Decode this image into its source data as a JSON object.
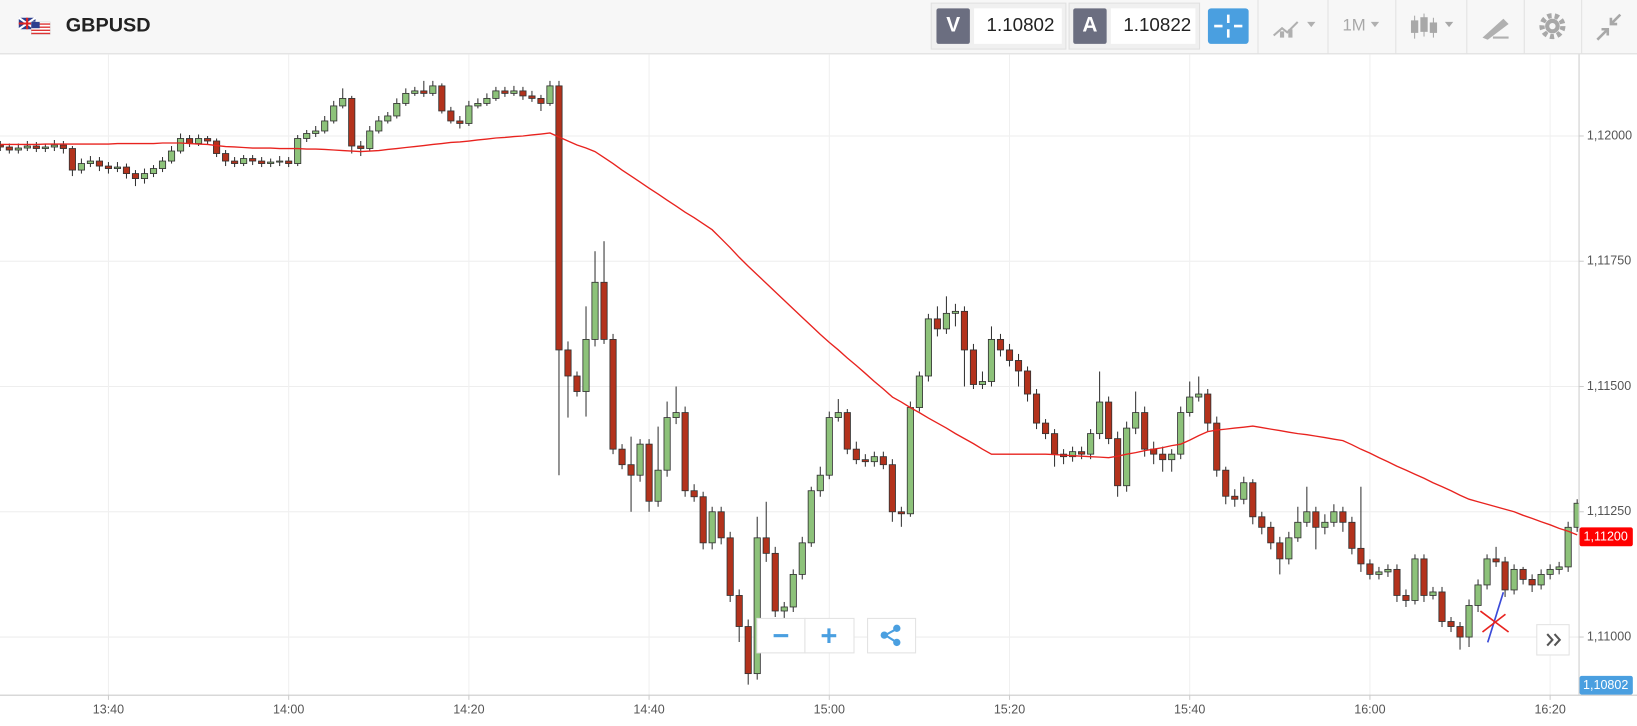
{
  "header": {
    "symbol": "GBPUSD",
    "sell_label": "V",
    "sell_price": "1.10802",
    "buy_label": "A",
    "buy_price": "1.10822",
    "timeframe": "1M"
  },
  "chart_data": {
    "type": "candlestick",
    "categories": [
      null,
      null,
      null,
      null,
      null,
      null,
      null,
      null,
      null,
      null,
      null,
      null,
      "13:40",
      null,
      null,
      null,
      null,
      null,
      null,
      null,
      null,
      null,
      null,
      null,
      null,
      null,
      null,
      null,
      null,
      null,
      null,
      null,
      "14:00",
      null,
      null,
      null,
      null,
      null,
      null,
      null,
      null,
      null,
      null,
      null,
      null,
      null,
      null,
      null,
      null,
      null,
      null,
      null,
      "14:20",
      null,
      null,
      null,
      null,
      null,
      null,
      null,
      null,
      null,
      null,
      null,
      null,
      null,
      null,
      null,
      null,
      null,
      null,
      null,
      "14:40",
      null,
      null,
      null,
      null,
      null,
      null,
      null,
      null,
      null,
      null,
      null,
      null,
      null,
      null,
      null,
      null,
      null,
      null,
      null,
      "15:00",
      null,
      null,
      null,
      null,
      null,
      null,
      null,
      null,
      null,
      null,
      null,
      null,
      null,
      null,
      null,
      null,
      null,
      null,
      null,
      "15:20",
      null,
      null,
      null,
      null,
      null,
      null,
      null,
      null,
      null,
      null,
      null,
      null,
      null,
      null,
      null,
      null,
      null,
      null,
      null,
      "15:40",
      null,
      null,
      null,
      null,
      null,
      null,
      null,
      null,
      null,
      null,
      null,
      null,
      null,
      null,
      null,
      null,
      null,
      null,
      null,
      "16:00",
      null,
      null,
      null,
      null,
      null,
      null,
      null,
      null,
      null,
      null,
      null,
      null,
      null,
      null,
      null,
      null,
      null,
      null,
      null,
      "16:20",
      null,
      null,
      null
    ],
    "open": [
      1.11982,
      1.11978,
      1.11972,
      1.11976,
      1.1198,
      1.11975,
      1.11978,
      1.11982,
      1.11975,
      1.11932,
      1.11945,
      1.1195,
      1.1194,
      1.11935,
      1.11938,
      1.11925,
      1.11915,
      1.11925,
      1.11935,
      1.1195,
      1.1197,
      1.11995,
      1.11985,
      1.11995,
      1.1199,
      1.11965,
      1.1195,
      1.11945,
      1.11955,
      1.1195,
      1.11945,
      1.11948,
      1.1195,
      1.11945,
      1.11995,
      1.12005,
      1.1201,
      1.1203,
      1.1206,
      1.12075,
      1.1198,
      1.11975,
      1.1201,
      1.1203,
      1.1204,
      1.12065,
      1.12085,
      1.1209,
      1.12085,
      1.121,
      1.1205,
      1.1203,
      1.12025,
      1.1206,
      1.12065,
      1.12075,
      1.1209,
      1.12085,
      1.1209,
      1.1208,
      1.12075,
      1.12065,
      1.121,
      1.11573,
      1.11521,
      1.1149,
      1.11594,
      1.11708,
      1.11594,
      1.11375,
      1.11344,
      1.11323,
      1.11385,
      1.11271,
      1.11333,
      1.11438,
      1.11448,
      1.11292,
      1.1128,
      1.11188,
      1.1125,
      1.11198,
      1.11083,
      1.11021,
      1.10927,
      1.11198,
      1.11167,
      1.11052,
      1.1106,
      1.11125,
      1.11188,
      1.11292,
      1.11323,
      1.11438,
      1.11448,
      1.11375,
      1.11354,
      1.1135,
      1.1136,
      1.11344,
      1.1125,
      1.11246,
      1.11458,
      1.11521,
      1.11635,
      1.11615,
      1.11646,
      1.1165,
      1.11573,
      1.11504,
      1.1151,
      1.11594,
      1.11573,
      1.11552,
      1.11531,
      1.11485,
      1.11427,
      1.11406,
      1.11365,
      1.1136,
      1.1137,
      1.11365,
      1.11406,
      1.11469,
      1.11396,
      1.11302,
      1.11417,
      1.11448,
      1.11375,
      1.11365,
      1.11354,
      1.11365,
      1.11448,
      1.11479,
      1.11485,
      1.11427,
      1.11333,
      1.11281,
      1.11275,
      1.11308,
      1.1124,
      1.11219,
      1.11188,
      1.11156,
      1.11198,
      1.11229,
      1.1125,
      1.11219,
      1.11229,
      1.1125,
      1.11229,
      1.11177,
      1.11146,
      1.11125,
      1.1113,
      1.11135,
      1.11083,
      1.11073,
      1.11156,
      1.11083,
      1.1109,
      1.11031,
      1.11021,
      1.11,
      1.11063,
      1.11104,
      1.11156,
      1.1115,
      1.11094,
      1.11135,
      1.11115,
      1.11104,
      1.11125,
      1.11135,
      1.1114,
      1.11219
    ],
    "high": [
      1.1199,
      1.11985,
      1.11985,
      1.1199,
      1.11988,
      1.11985,
      1.11992,
      1.1199,
      1.1198,
      1.11955,
      1.1196,
      1.11958,
      1.11948,
      1.11948,
      1.11945,
      1.11932,
      1.11935,
      1.11942,
      1.11958,
      1.1198,
      1.12005,
      1.12002,
      1.12003,
      1.12,
      1.11995,
      1.11972,
      1.11958,
      1.11962,
      1.11962,
      1.11958,
      1.11955,
      1.1196,
      1.11958,
      1.12002,
      1.12012,
      1.1202,
      1.1204,
      1.1207,
      1.12095,
      1.1208,
      1.1199,
      1.1202,
      1.1204,
      1.12048,
      1.12075,
      1.12095,
      1.12098,
      1.1211,
      1.1211,
      1.12105,
      1.12058,
      1.1204,
      1.1207,
      1.12075,
      1.12085,
      1.12098,
      1.12098,
      1.121,
      1.12098,
      1.1209,
      1.12082,
      1.1211,
      1.1211,
      1.1159,
      1.1153,
      1.1166,
      1.1177,
      1.1179,
      1.11605,
      1.11385,
      1.114,
      1.11395,
      1.11395,
      1.1142,
      1.1147,
      1.115,
      1.1146,
      1.11305,
      1.1129,
      1.1126,
      1.1126,
      1.1121,
      1.11095,
      1.11035,
      1.1124,
      1.1127,
      1.1118,
      1.1107,
      1.11135,
      1.112,
      1.113,
      1.1134,
      1.1145,
      1.11475,
      1.11455,
      1.1139,
      1.11365,
      1.1137,
      1.1137,
      1.11355,
      1.1126,
      1.1147,
      1.1153,
      1.11645,
      1.1166,
      1.1168,
      1.11665,
      1.1166,
      1.11585,
      1.1153,
      1.1162,
      1.11605,
      1.11585,
      1.11565,
      1.1154,
      1.11495,
      1.11435,
      1.11415,
      1.11375,
      1.1138,
      1.1138,
      1.11415,
      1.1153,
      1.1148,
      1.1141,
      1.1143,
      1.1149,
      1.1146,
      1.1139,
      1.1138,
      1.11375,
      1.1146,
      1.1151,
      1.1152,
      1.11495,
      1.1144,
      1.1134,
      1.11295,
      1.1132,
      1.11315,
      1.1125,
      1.1123,
      1.112,
      1.1121,
      1.1126,
      1.113,
      1.1126,
      1.11245,
      1.11265,
      1.1126,
      1.1124,
      1.113,
      1.11155,
      1.1114,
      1.11145,
      1.11145,
      1.11095,
      1.11165,
      1.11165,
      1.111,
      1.111,
      1.1104,
      1.1103,
      1.11075,
      1.11115,
      1.11165,
      1.1118,
      1.1116,
      1.11145,
      1.1114,
      1.11125,
      1.11135,
      1.11145,
      1.1115,
      1.1123,
      1.11275
    ],
    "low": [
      1.1197,
      1.11965,
      1.11965,
      1.1197,
      1.11968,
      1.11968,
      1.1197,
      1.11965,
      1.1192,
      1.11925,
      1.11938,
      1.1193,
      1.11925,
      1.11928,
      1.11915,
      1.119,
      1.11905,
      1.11918,
      1.11928,
      1.11945,
      1.11965,
      1.11978,
      1.1198,
      1.11982,
      1.11958,
      1.1194,
      1.11938,
      1.1194,
      1.11942,
      1.11938,
      1.11938,
      1.1194,
      1.11938,
      1.1194,
      1.11988,
      1.11998,
      1.12005,
      1.12025,
      1.12055,
      1.11965,
      1.1196,
      1.1197,
      1.12005,
      1.12025,
      1.12035,
      1.1206,
      1.1208,
      1.12078,
      1.1208,
      1.12045,
      1.12025,
      1.12015,
      1.1202,
      1.12055,
      1.1206,
      1.1207,
      1.12078,
      1.1208,
      1.12072,
      1.12068,
      1.1205,
      1.1206,
      1.11323,
      1.11438,
      1.1148,
      1.1144,
      1.1158,
      1.11585,
      1.11365,
      1.11335,
      1.1125,
      1.1131,
      1.1125,
      1.1126,
      1.1132,
      1.11425,
      1.1128,
      1.1127,
      1.11175,
      1.11175,
      1.11185,
      1.1107,
      1.1099,
      1.10905,
      1.10915,
      1.1115,
      1.1104,
      1.1102,
      1.1105,
      1.11115,
      1.1118,
      1.1128,
      1.11315,
      1.1143,
      1.11365,
      1.11345,
      1.1134,
      1.1134,
      1.11335,
      1.1123,
      1.1122,
      1.1124,
      1.1145,
      1.1151,
      1.116,
      1.11605,
      1.1162,
      1.115,
      1.11495,
      1.11495,
      1.115,
      1.1156,
      1.1154,
      1.115,
      1.1147,
      1.11415,
      1.11395,
      1.1134,
      1.11345,
      1.1135,
      1.11355,
      1.11355,
      1.11395,
      1.11385,
      1.1128,
      1.1129,
      1.11405,
      1.1136,
      1.11345,
      1.1133,
      1.1133,
      1.11355,
      1.1144,
      1.1147,
      1.1141,
      1.1132,
      1.11265,
      1.1126,
      1.11265,
      1.11225,
      1.11205,
      1.11175,
      1.11125,
      1.11145,
      1.1119,
      1.1122,
      1.11175,
      1.11205,
      1.1122,
      1.1121,
      1.11165,
      1.1113,
      1.11115,
      1.11115,
      1.1112,
      1.1107,
      1.1106,
      1.11065,
      1.1107,
      1.11075,
      1.1102,
      1.1101,
      1.10975,
      1.1098,
      1.1105,
      1.11095,
      1.1114,
      1.1108,
      1.11085,
      1.11105,
      1.1109,
      1.11095,
      1.11115,
      1.11125,
      1.1113,
      1.1121
    ],
    "close": [
      1.11978,
      1.11972,
      1.11976,
      1.1198,
      1.11975,
      1.11978,
      1.11982,
      1.11975,
      1.11932,
      1.11945,
      1.1195,
      1.1194,
      1.11935,
      1.11938,
      1.11925,
      1.11915,
      1.11925,
      1.11935,
      1.1195,
      1.1197,
      1.11995,
      1.11985,
      1.11995,
      1.1199,
      1.11965,
      1.1195,
      1.11945,
      1.11955,
      1.1195,
      1.11945,
      1.11948,
      1.1195,
      1.11945,
      1.11995,
      1.12005,
      1.1201,
      1.1203,
      1.1206,
      1.12075,
      1.1198,
      1.11975,
      1.1201,
      1.1203,
      1.1204,
      1.12065,
      1.12085,
      1.1209,
      1.12085,
      1.121,
      1.1205,
      1.1203,
      1.12025,
      1.1206,
      1.12065,
      1.12075,
      1.1209,
      1.12085,
      1.1209,
      1.1208,
      1.12075,
      1.12065,
      1.121,
      1.11573,
      1.11521,
      1.1149,
      1.11594,
      1.11708,
      1.11594,
      1.11375,
      1.11344,
      1.11323,
      1.11385,
      1.11271,
      1.11333,
      1.11438,
      1.11448,
      1.11292,
      1.1128,
      1.11188,
      1.1125,
      1.11198,
      1.11083,
      1.11021,
      1.10927,
      1.11198,
      1.11167,
      1.11052,
      1.1106,
      1.11125,
      1.11188,
      1.11292,
      1.11323,
      1.11438,
      1.11448,
      1.11375,
      1.11354,
      1.1135,
      1.1136,
      1.11344,
      1.1125,
      1.11246,
      1.11458,
      1.11521,
      1.11635,
      1.11615,
      1.11646,
      1.1165,
      1.11573,
      1.11504,
      1.1151,
      1.11594,
      1.11573,
      1.11552,
      1.11531,
      1.11485,
      1.11427,
      1.11406,
      1.11365,
      1.1136,
      1.1137,
      1.11365,
      1.11406,
      1.11469,
      1.11396,
      1.11302,
      1.11417,
      1.11448,
      1.11375,
      1.11365,
      1.11354,
      1.11365,
      1.11448,
      1.11479,
      1.11485,
      1.11427,
      1.11333,
      1.11281,
      1.11275,
      1.11308,
      1.1124,
      1.11219,
      1.11188,
      1.11156,
      1.11198,
      1.11229,
      1.1125,
      1.11219,
      1.11229,
      1.1125,
      1.11229,
      1.11177,
      1.11146,
      1.11125,
      1.1113,
      1.11135,
      1.11083,
      1.11073,
      1.11156,
      1.11083,
      1.1109,
      1.11031,
      1.11021,
      1.11,
      1.11063,
      1.11104,
      1.11156,
      1.1115,
      1.11094,
      1.11135,
      1.11115,
      1.11104,
      1.11125,
      1.11135,
      1.1114,
      1.11219,
      1.11267
    ],
    "up_color": "#8dc27a",
    "down_color": "#b3321c",
    "ma": {
      "color": "#e8231f",
      "values": [
        1.11983,
        1.11983,
        1.11983,
        1.11983,
        1.11983,
        1.11984,
        1.11984,
        1.11984,
        1.11984,
        1.11984,
        1.11984,
        1.11984,
        1.11984,
        1.11985,
        1.11985,
        1.11985,
        1.11985,
        1.11985,
        1.11986,
        1.11986,
        1.11986,
        1.11985,
        1.11984,
        1.11983,
        1.11981,
        1.11979,
        1.11978,
        1.11977,
        1.11976,
        1.11976,
        1.11976,
        1.11975,
        1.11975,
        1.11975,
        1.11974,
        1.11974,
        1.11973,
        1.11972,
        1.11971,
        1.1197,
        1.11969,
        1.1197,
        1.11971,
        1.11973,
        1.11975,
        1.11977,
        1.11979,
        1.11981,
        1.11983,
        1.11985,
        1.11987,
        1.11988,
        1.1199,
        1.11992,
        1.11994,
        1.11996,
        1.11997,
        1.11999,
        1.12,
        1.12002,
        1.12004,
        1.12006,
        1.11998,
        1.1199,
        1.11982,
        1.11976,
        1.11969,
        1.11957,
        1.11945,
        1.11932,
        1.1192,
        1.11908,
        1.11896,
        1.11884,
        1.11872,
        1.1186,
        1.11848,
        1.11837,
        1.11825,
        1.11813,
        1.11795,
        1.11777,
        1.11758,
        1.1174,
        1.11723,
        1.11706,
        1.11689,
        1.11672,
        1.11655,
        1.11638,
        1.11621,
        1.11604,
        1.11588,
        1.11573,
        1.11557,
        1.11542,
        1.11526,
        1.1151,
        1.11495,
        1.11479,
        1.11469,
        1.11458,
        1.11448,
        1.11437,
        1.11427,
        1.11417,
        1.11406,
        1.11396,
        1.11386,
        1.11375,
        1.11365,
        1.11365,
        1.11365,
        1.11365,
        1.11365,
        1.11365,
        1.11365,
        1.11364,
        1.11363,
        1.11362,
        1.11361,
        1.1136,
        1.11359,
        1.11358,
        1.11361,
        1.11365,
        1.11368,
        1.11372,
        1.11375,
        1.11378,
        1.11382,
        1.11385,
        1.11393,
        1.11402,
        1.1141,
        1.11413,
        1.11415,
        1.11417,
        1.11419,
        1.11421,
        1.11418,
        1.11415,
        1.11412,
        1.11409,
        1.11406,
        1.11404,
        1.11401,
        1.11398,
        1.11395,
        1.11392,
        1.11384,
        1.11375,
        1.11367,
        1.11358,
        1.1135,
        1.11341,
        1.11333,
        1.11325,
        1.11317,
        1.11308,
        1.113,
        1.11292,
        1.11283,
        1.11275,
        1.1127,
        1.11265,
        1.1126,
        1.11255,
        1.1125,
        1.11243,
        1.11237,
        1.1123,
        1.11224,
        1.11217,
        1.11211,
        1.11204
      ]
    },
    "ylim": [
      1.10885,
      1.12163
    ],
    "yticks": [
      {
        "value": 1.11,
        "label": "1,11000"
      },
      {
        "value": 1.1125,
        "label": "1,11250"
      },
      {
        "value": 1.115,
        "label": "1,11500"
      },
      {
        "value": 1.1175,
        "label": "1,11750"
      },
      {
        "value": 1.12,
        "label": "1,12000"
      }
    ],
    "grid": true,
    "price_tags": [
      {
        "value": 1.112,
        "label": "1,11200",
        "color": "#ff0000"
      }
    ],
    "bid_tag": {
      "label": "1,10802",
      "color": "#4a9fe0"
    }
  }
}
